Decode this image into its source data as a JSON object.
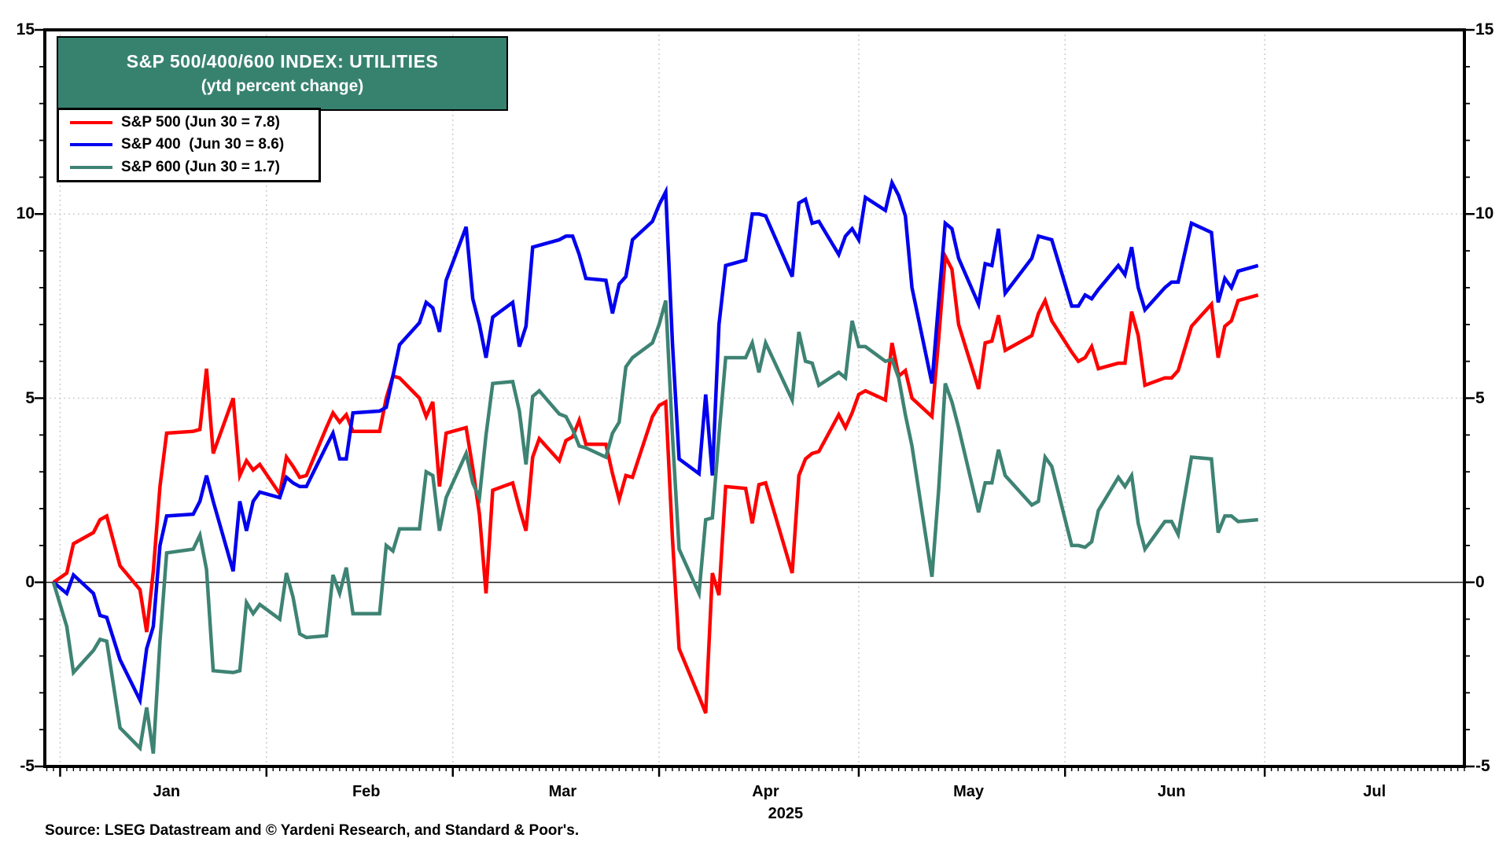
{
  "title": {
    "line1": "S&P 500/400/600 INDEX: UTILITIES",
    "line2": "(ytd percent change)"
  },
  "source": "Source: LSEG Datastream and © Yardeni Research, and Standard & Poor's.",
  "colors": {
    "title_bg": "#37826F",
    "sp500": "#FF0000",
    "sp400": "#0000EE",
    "sp600": "#3E8374",
    "grid_dotted": "#C9C9C9",
    "zero_line": "#1A1A1A",
    "frame": "#000000"
  },
  "legend": [
    {
      "name": "sp500",
      "label": "S&P 500 (Jun 30 = 7.8)"
    },
    {
      "name": "sp400",
      "label": "S&P 400  (Jun 30 = 8.6)"
    },
    {
      "name": "sp600",
      "label": "S&P 600 (Jun 30 = 1.7)"
    }
  ],
  "chart_data": {
    "type": "line",
    "title": "S&P 500/400/600 INDEX: UTILITIES",
    "subtitle": "(ytd percent change)",
    "ylabel": "ytd percent change",
    "ylim": [
      -5,
      15
    ],
    "yticks": [
      -5,
      0,
      5,
      10,
      15
    ],
    "y_minor_step": 1,
    "grid": {
      "h_dotted_values": [
        5,
        10
      ],
      "zero_line_value": 0,
      "v_dotted_days": [
        1,
        32,
        60,
        91,
        121,
        152,
        182
      ]
    },
    "legend_position": "top-left",
    "x_axis": {
      "unit": "calendar day offset from Dec 31 2024",
      "domain": [
        -1.3,
        212
      ],
      "months": [
        {
          "label": "Jan",
          "start_day": 1,
          "mid_day": 17
        },
        {
          "label": "Feb",
          "start_day": 32,
          "mid_day": 47
        },
        {
          "label": "Mar",
          "start_day": 60,
          "mid_day": 76.5
        },
        {
          "label": "Apr",
          "start_day": 91,
          "mid_day": 107
        },
        {
          "label": "May",
          "start_day": 121,
          "mid_day": 137.5
        },
        {
          "label": "Jun",
          "start_day": 152,
          "mid_day": 168
        },
        {
          "label": "Jul",
          "start_day": 182,
          "mid_day": 198.5
        }
      ],
      "year_label": "2025",
      "year_mid_day": 110
    },
    "x_days": [
      0,
      2,
      3,
      6,
      7,
      8,
      10,
      13,
      14,
      15,
      16,
      17,
      21,
      22,
      23,
      24,
      27,
      28,
      29,
      30,
      31,
      34,
      35,
      36,
      37,
      38,
      41,
      42,
      43,
      44,
      45,
      49,
      50,
      51,
      52,
      55,
      56,
      57,
      58,
      59,
      62,
      63,
      64,
      65,
      66,
      69,
      70,
      71,
      72,
      73,
      76,
      77,
      78,
      79,
      80,
      83,
      84,
      85,
      86,
      87,
      90,
      91,
      92,
      93,
      94,
      97,
      98,
      99,
      100,
      101,
      104,
      105,
      106,
      107,
      111,
      112,
      113,
      114,
      115,
      118,
      119,
      120,
      121,
      122,
      125,
      126,
      127,
      128,
      129,
      132,
      133,
      134,
      135,
      136,
      139,
      140,
      141,
      142,
      143,
      147,
      148,
      149,
      150,
      153,
      154,
      155,
      156,
      157,
      160,
      161,
      162,
      163,
      164,
      167,
      168,
      169,
      171,
      174,
      175,
      176,
      177,
      178,
      181
    ],
    "series": [
      {
        "name": "S&P 500",
        "legend_label": "S&P 500 (Jun 30 = 7.8)",
        "color_key": "sp500",
        "jun30_value": 7.8,
        "values": [
          0,
          0.25,
          1.05,
          1.35,
          1.7,
          1.8,
          0.45,
          -0.2,
          -1.35,
          0.3,
          2.6,
          4.05,
          4.1,
          4.15,
          5.8,
          3.5,
          5.0,
          2.9,
          3.3,
          3.05,
          3.2,
          2.4,
          3.4,
          3.15,
          2.85,
          2.9,
          4.2,
          4.6,
          4.35,
          4.55,
          4.1,
          4.1,
          5.0,
          5.6,
          5.55,
          5.0,
          4.5,
          4.9,
          2.6,
          4.05,
          4.2,
          3.1,
          1.85,
          -0.3,
          2.5,
          2.7,
          2.0,
          1.4,
          3.4,
          3.9,
          3.3,
          3.85,
          3.95,
          4.4,
          3.75,
          3.75,
          2.95,
          2.25,
          2.9,
          2.85,
          4.5,
          4.8,
          4.9,
          1.2,
          -1.8,
          -3.1,
          -3.55,
          0.25,
          -0.35,
          2.6,
          2.55,
          1.6,
          2.65,
          2.7,
          0.25,
          2.9,
          3.35,
          3.5,
          3.55,
          4.55,
          4.2,
          4.6,
          5.1,
          5.2,
          4.95,
          6.5,
          5.6,
          5.75,
          5.0,
          4.5,
          6.6,
          8.85,
          8.5,
          7.0,
          5.25,
          6.5,
          6.55,
          7.25,
          6.3,
          6.7,
          7.3,
          7.65,
          7.1,
          6.25,
          6.0,
          6.1,
          6.4,
          5.8,
          5.95,
          5.95,
          7.35,
          6.7,
          5.35,
          5.55,
          5.55,
          5.75,
          6.95,
          7.55,
          6.1,
          6.95,
          7.1,
          7.65,
          7.8
        ]
      },
      {
        "name": "S&P 400",
        "legend_label": "S&P 400  (Jun 30 = 8.6)",
        "color_key": "sp400",
        "jun30_value": 8.6,
        "values": [
          0,
          -0.3,
          0.2,
          -0.3,
          -0.9,
          -0.95,
          -2.1,
          -3.2,
          -1.8,
          -1.2,
          1.0,
          1.8,
          1.85,
          2.2,
          2.9,
          2.2,
          0.3,
          2.2,
          1.4,
          2.2,
          2.45,
          2.3,
          2.85,
          2.7,
          2.6,
          2.6,
          3.7,
          4.05,
          3.35,
          3.35,
          4.6,
          4.65,
          4.75,
          5.6,
          6.45,
          7.05,
          7.6,
          7.45,
          6.8,
          8.2,
          9.65,
          7.7,
          7.0,
          6.1,
          7.2,
          7.6,
          6.4,
          6.95,
          9.1,
          9.15,
          9.3,
          9.4,
          9.4,
          8.9,
          8.25,
          8.2,
          7.3,
          8.1,
          8.3,
          9.3,
          9.8,
          10.25,
          10.6,
          6.5,
          3.35,
          2.95,
          5.1,
          2.9,
          7.0,
          8.6,
          8.75,
          10.0,
          10.0,
          9.95,
          8.3,
          10.3,
          10.4,
          9.75,
          9.8,
          8.9,
          9.4,
          9.6,
          9.3,
          10.45,
          10.1,
          10.85,
          10.5,
          9.95,
          8.0,
          5.4,
          7.6,
          9.75,
          9.6,
          8.8,
          7.55,
          8.65,
          8.6,
          9.6,
          7.85,
          8.8,
          9.4,
          9.35,
          9.3,
          7.5,
          7.5,
          7.8,
          7.7,
          7.95,
          8.6,
          8.35,
          9.1,
          8.0,
          7.4,
          8.0,
          8.15,
          8.15,
          9.75,
          9.5,
          7.6,
          8.25,
          8.0,
          8.45,
          8.6
        ]
      },
      {
        "name": "S&P 600",
        "legend_label": "S&P 600 (Jun 30 = 1.7)",
        "color_key": "sp600",
        "jun30_value": 1.7,
        "values": [
          0,
          -1.2,
          -2.45,
          -1.85,
          -1.55,
          -1.6,
          -3.95,
          -4.5,
          -3.4,
          -4.65,
          -1.6,
          0.8,
          0.9,
          1.28,
          0.35,
          -2.4,
          -2.45,
          -2.4,
          -0.55,
          -0.85,
          -0.6,
          -1.0,
          0.25,
          -0.4,
          -1.4,
          -1.5,
          -1.45,
          0.2,
          -0.3,
          0.4,
          -0.85,
          -0.85,
          1.0,
          0.85,
          1.45,
          1.45,
          3.0,
          2.9,
          1.4,
          2.3,
          3.5,
          2.7,
          2.3,
          4.0,
          5.4,
          5.45,
          4.65,
          3.2,
          5.05,
          5.2,
          4.57,
          4.5,
          4.15,
          3.7,
          3.65,
          3.4,
          4.05,
          4.35,
          5.85,
          6.1,
          6.5,
          7.0,
          7.65,
          4.0,
          0.9,
          -0.3,
          1.7,
          1.75,
          4.0,
          6.1,
          6.1,
          6.5,
          5.7,
          6.5,
          4.95,
          6.8,
          6.0,
          5.95,
          5.35,
          5.7,
          5.55,
          7.1,
          6.4,
          6.4,
          6.0,
          6.05,
          5.55,
          4.55,
          3.7,
          0.15,
          2.5,
          5.4,
          4.9,
          4.2,
          1.9,
          2.7,
          2.7,
          3.6,
          2.9,
          2.1,
          2.2,
          3.4,
          3.15,
          1.0,
          1.0,
          0.95,
          1.1,
          1.95,
          2.85,
          2.6,
          2.9,
          1.6,
          0.9,
          1.65,
          1.65,
          1.3,
          3.4,
          3.35,
          1.35,
          1.8,
          1.8,
          1.65,
          1.7
        ]
      }
    ]
  }
}
